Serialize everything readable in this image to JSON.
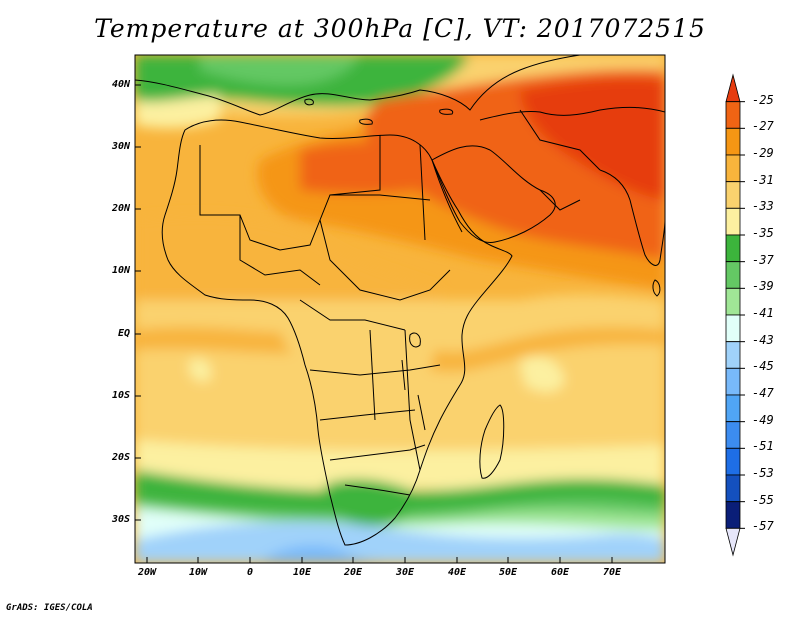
{
  "title": "Temperature at 300hPa [C], VT: 2017072515",
  "credit": "GrADS: IGES/COLA",
  "lat_labels": [
    "40N",
    "30N",
    "20N",
    "10N",
    "EQ",
    "10S",
    "20S",
    "30S"
  ],
  "lon_labels": [
    "20W",
    "10W",
    "0",
    "10E",
    "20E",
    "30E",
    "40E",
    "50E",
    "60E",
    "70E"
  ],
  "colorbar": {
    "labels": [
      "-25",
      "-27",
      "-29",
      "-31",
      "-33",
      "-35",
      "-37",
      "-39",
      "-41",
      "-43",
      "-45",
      "-47",
      "-49",
      "-51",
      "-53",
      "-55",
      "-57"
    ],
    "colors": [
      "#e63c0f",
      "#f06414",
      "#f59614",
      "#f8b43c",
      "#fad26e",
      "#fcf0a0",
      "#3cb43c",
      "#64c864",
      "#a0e696",
      "#e1fff9",
      "#a0d2fa",
      "#78b9fa",
      "#50a5f5",
      "#3c8cf0",
      "#1e6ee6",
      "#1450be",
      "#0a1e78",
      "#e6e6fa"
    ]
  },
  "colors": {
    "map_border": "#000000",
    "coast": "#000000"
  }
}
